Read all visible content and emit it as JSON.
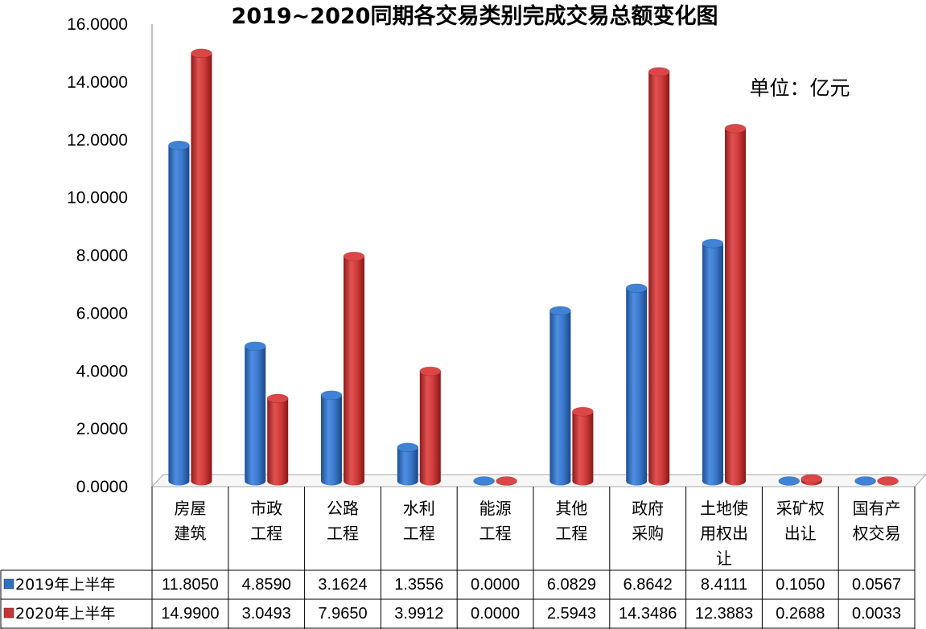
{
  "chart_data": {
    "type": "bar",
    "title": "2019~2020同期各交易类别完成交易总额变化图",
    "unit_label": "单位：亿元",
    "ylim": [
      0,
      16
    ],
    "yticks": [
      "0.0000",
      "2.0000",
      "4.0000",
      "6.0000",
      "8.0000",
      "10.0000",
      "12.0000",
      "14.0000",
      "16.0000"
    ],
    "categories": [
      [
        "房屋",
        "建筑"
      ],
      [
        "市政",
        "工程"
      ],
      [
        "公路",
        "工程"
      ],
      [
        "水利",
        "工程"
      ],
      [
        "能源",
        "工程"
      ],
      [
        "其他",
        "工程"
      ],
      [
        "政府",
        "采购"
      ],
      [
        "土地使",
        "用权出",
        "让"
      ],
      [
        "采矿权",
        "出让"
      ],
      [
        "国有产",
        "权交易"
      ]
    ],
    "series": [
      {
        "name": "2019年上半年",
        "color": "#2e6fc0",
        "values": [
          11.805,
          4.859,
          3.1624,
          1.3556,
          0.0,
          6.0829,
          6.8642,
          8.4111,
          0.105,
          0.0567
        ],
        "labels": [
          "11.8050",
          "4.8590",
          "3.1624",
          "1.3556",
          "0.0000",
          "6.0829",
          "6.8642",
          "8.4111",
          "0.1050",
          "0.0567"
        ]
      },
      {
        "name": "2020年上半年",
        "color": "#c93232",
        "values": [
          14.99,
          3.0493,
          7.965,
          3.9912,
          0.0,
          2.5943,
          14.3486,
          12.3883,
          0.2688,
          0.0033
        ],
        "labels": [
          "14.9900",
          "3.0493",
          "7.9650",
          "3.9912",
          "0.0000",
          "2.5943",
          "14.3486",
          "12.3883",
          "0.2688",
          "0.0033"
        ]
      }
    ],
    "legend": "data-table",
    "grid": false
  }
}
